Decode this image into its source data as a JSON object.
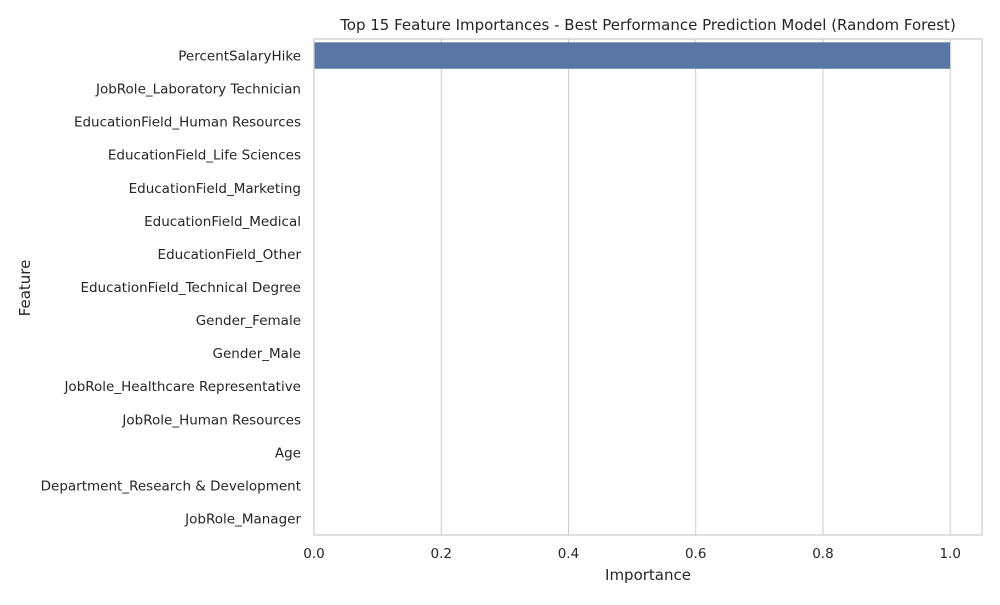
{
  "chart_data": {
    "type": "bar",
    "orientation": "horizontal",
    "title": "Top 15 Feature Importances - Best Performance Prediction Model (Random Forest)",
    "xlabel": "Importance",
    "ylabel": "Feature",
    "categories": [
      "PercentSalaryHike",
      "JobRole_Laboratory Technician",
      "EducationField_Human Resources",
      "EducationField_Life Sciences",
      "EducationField_Marketing",
      "EducationField_Medical",
      "EducationField_Other",
      "EducationField_Technical Degree",
      "Gender_Female",
      "Gender_Male",
      "JobRole_Healthcare Representative",
      "JobRole_Human Resources",
      "Age",
      "Department_Research & Development",
      "JobRole_Manager"
    ],
    "values": [
      1.0,
      0,
      0,
      0,
      0,
      0,
      0,
      0,
      0,
      0,
      0,
      0,
      0,
      0,
      0
    ],
    "xlim": [
      0,
      1.05
    ],
    "xticks": [
      0.0,
      0.2,
      0.4,
      0.6,
      0.8,
      1.0
    ],
    "xtick_labels": [
      "0.0",
      "0.2",
      "0.4",
      "0.6",
      "0.8",
      "1.0"
    ],
    "grid": "vertical",
    "bar_color": "#5975a4",
    "grid_color": "#cccccc",
    "spine_color": "#cccccc"
  }
}
